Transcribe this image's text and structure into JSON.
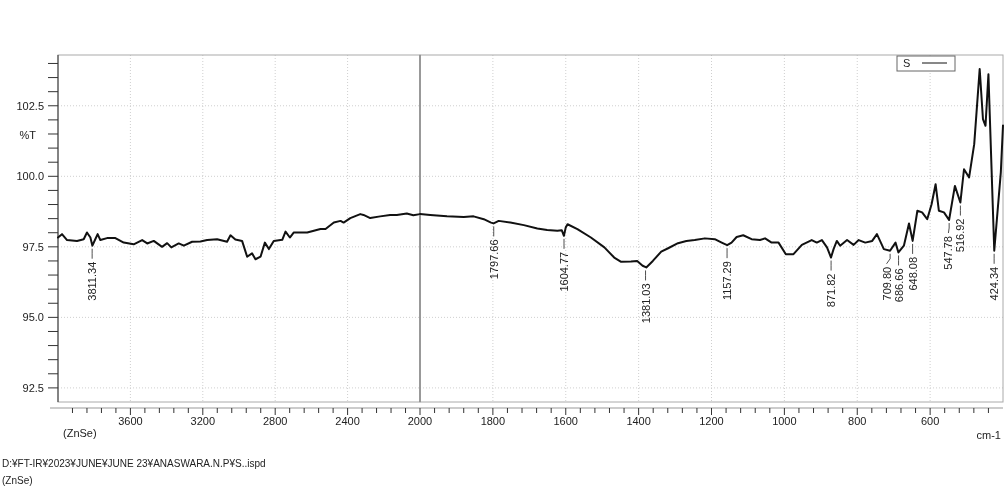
{
  "chart_data": [
    {
      "type": "line",
      "ylabel": "%T",
      "xlim": [
        4000,
        2000
      ],
      "ylim": [
        92,
        104.3
      ],
      "xticks": [
        3600,
        3200,
        2800,
        2400,
        {
          "value": 3920,
          "label": null
        },
        {
          "value": 3840,
          "label": null
        },
        {
          "value": 3760,
          "label": null
        },
        {
          "value": 3680,
          "label": null
        },
        {
          "value": 3520,
          "label": null
        },
        {
          "value": 3440,
          "label": null
        },
        {
          "value": 3360,
          "label": null
        },
        {
          "value": 3280,
          "label": null
        },
        {
          "value": 3120,
          "label": null
        },
        {
          "value": 3040,
          "label": null
        },
        {
          "value": 2960,
          "label": null
        },
        {
          "value": 2880,
          "label": null
        },
        {
          "value": 2720,
          "label": null
        },
        {
          "value": 2640,
          "label": null
        },
        {
          "value": 2560,
          "label": null
        },
        {
          "value": 2480,
          "label": null
        },
        {
          "value": 2320,
          "label": null
        },
        {
          "value": 2240,
          "label": null
        },
        {
          "value": 2160,
          "label": null
        },
        {
          "value": 2080,
          "label": null
        }
      ],
      "yticks": [
        92.5,
        {
          "value": 95,
          "label": "95.0"
        },
        97.5,
        {
          "value": 100,
          "label": "100.0"
        },
        102.5,
        {
          "value": 93,
          "label": null
        },
        {
          "value": 93.5,
          "label": null
        },
        {
          "value": 94,
          "label": null
        },
        {
          "value": 94.5,
          "label": null
        },
        {
          "value": 95.5,
          "label": null
        },
        {
          "value": 96,
          "label": null
        },
        {
          "value": 96.5,
          "label": null
        },
        {
          "value": 97,
          "label": null
        },
        {
          "value": 98,
          "label": null
        },
        {
          "value": 98.5,
          "label": null
        },
        {
          "value": 99,
          "label": null
        },
        {
          "value": 99.5,
          "label": null
        },
        {
          "value": 100.5,
          "label": null
        },
        {
          "value": 101,
          "label": null
        },
        {
          "value": 101.5,
          "label": null
        },
        {
          "value": 102,
          "label": null
        },
        {
          "value": 103,
          "label": null
        },
        {
          "value": 103.5,
          "label": null
        },
        {
          "value": 104,
          "label": null
        }
      ],
      "grid": true,
      "marker": "none",
      "line_style": "solid",
      "series": [
        {
          "color": "#111111",
          "x": [
            4000,
            3978,
            3950,
            3895,
            3858,
            3840,
            3821,
            3810,
            3794,
            3781,
            3766,
            3729,
            3683,
            3637,
            3582,
            3535,
            3507,
            3471,
            3425,
            3397,
            3374,
            3333,
            3305,
            3259,
            3213,
            3176,
            3121,
            3066,
            3047,
            3020,
            2983,
            2955,
            2928,
            2909,
            2881,
            2857,
            2835,
            2808,
            2761,
            2743,
            2719,
            2697,
            2623,
            2550,
            2522,
            2476,
            2439,
            2422,
            2385,
            2330,
            2312,
            2275,
            2220,
            2165,
            2128,
            2073,
            2037,
            2000
          ],
          "values": [
            97.83,
            97.95,
            97.74,
            97.71,
            97.77,
            98.01,
            97.83,
            97.54,
            97.77,
            97.95,
            97.74,
            97.81,
            97.81,
            97.65,
            97.59,
            97.74,
            97.62,
            97.71,
            97.5,
            97.63,
            97.48,
            97.62,
            97.54,
            97.68,
            97.69,
            97.74,
            97.77,
            97.68,
            97.91,
            97.76,
            97.71,
            97.15,
            97.27,
            97.06,
            97.15,
            97.65,
            97.42,
            97.71,
            97.75,
            98.04,
            97.83,
            98.01,
            98.01,
            98.13,
            98.13,
            98.36,
            98.42,
            98.36,
            98.52,
            98.66,
            98.63,
            98.52,
            98.58,
            98.63,
            98.63,
            98.68,
            98.62,
            98.66
          ]
        }
      ],
      "annotations": [
        {
          "text": "3811.34",
          "x": 3811.34,
          "y": 97.54
        },
        "(ZnSe)",
        "D:¥FT-IR¥2023¥JUNE¥JUNE 23¥ANASWARA.N.P¥S..ispd",
        "(ZnSe)"
      ]
    },
    {
      "type": "line",
      "xlabel": "cm-1",
      "xlim": [
        2000,
        400
      ],
      "ylim": [
        92,
        104.3
      ],
      "xticks": [
        2000,
        1800,
        1600,
        1400,
        1200,
        1000,
        800,
        600,
        {
          "value": 1960,
          "label": null
        },
        {
          "value": 1920,
          "label": null
        },
        {
          "value": 1880,
          "label": null
        },
        {
          "value": 1840,
          "label": null
        },
        {
          "value": 1760,
          "label": null
        },
        {
          "value": 1720,
          "label": null
        },
        {
          "value": 1680,
          "label": null
        },
        {
          "value": 1640,
          "label": null
        },
        {
          "value": 1560,
          "label": null
        },
        {
          "value": 1520,
          "label": null
        },
        {
          "value": 1480,
          "label": null
        },
        {
          "value": 1440,
          "label": null
        },
        {
          "value": 1360,
          "label": null
        },
        {
          "value": 1320,
          "label": null
        },
        {
          "value": 1280,
          "label": null
        },
        {
          "value": 1240,
          "label": null
        },
        {
          "value": 1160,
          "label": null
        },
        {
          "value": 1120,
          "label": null
        },
        {
          "value": 1080,
          "label": null
        },
        {
          "value": 1040,
          "label": null
        },
        {
          "value": 960,
          "label": null
        },
        {
          "value": 920,
          "label": null
        },
        {
          "value": 880,
          "label": null
        },
        {
          "value": 840,
          "label": null
        },
        {
          "value": 760,
          "label": null
        },
        {
          "value": 720,
          "label": null
        },
        {
          "value": 680,
          "label": null
        },
        {
          "value": 640,
          "label": null
        },
        {
          "value": 560,
          "label": null
        },
        {
          "value": 520,
          "label": null
        },
        {
          "value": 480,
          "label": null
        },
        {
          "value": 440,
          "label": null
        }
      ],
      "yticks": [
        92.5,
        95,
        97.5,
        100,
        102.5
      ],
      "tick_labels": "x",
      "grid": true,
      "legend": "top right",
      "marker": "none",
      "line_style": "solid",
      "series": [
        {
          "name": "S",
          "color": "#111111",
          "x": [
            2000,
            1972,
            1926,
            1880,
            1853,
            1825,
            1805,
            1798,
            1784,
            1752,
            1715,
            1678,
            1651,
            1623,
            1611,
            1605,
            1600,
            1595,
            1568,
            1531,
            1494,
            1467,
            1448,
            1421,
            1404,
            1389,
            1379,
            1361,
            1338,
            1319,
            1292,
            1269,
            1246,
            1218,
            1191,
            1172,
            1157,
            1145,
            1131,
            1113,
            1090,
            1067,
            1053,
            1035,
            1016,
            996,
            975,
            952,
            925,
            911,
            897,
            883,
            872,
            865,
            856,
            847,
            828,
            810,
            796,
            778,
            759,
            746,
            727,
            710,
            695,
            687,
            672,
            658,
            648,
            635,
            622,
            608,
            596,
            585,
            576,
            562,
            548,
            532,
            517,
            507,
            493,
            479,
            464,
            455,
            448,
            440,
            424,
            406,
            400
          ],
          "values": [
            98.66,
            98.63,
            98.58,
            98.56,
            98.58,
            98.48,
            98.36,
            98.33,
            98.42,
            98.36,
            98.27,
            98.15,
            98.1,
            98.07,
            98.09,
            97.89,
            98.19,
            98.3,
            98.13,
            97.83,
            97.48,
            97.12,
            96.97,
            96.98,
            97.0,
            96.83,
            96.77,
            97.0,
            97.33,
            97.45,
            97.63,
            97.71,
            97.74,
            97.8,
            97.77,
            97.65,
            97.56,
            97.65,
            97.85,
            97.91,
            97.77,
            97.74,
            97.8,
            97.65,
            97.65,
            97.24,
            97.24,
            97.57,
            97.74,
            97.65,
            97.74,
            97.48,
            97.12,
            97.42,
            97.71,
            97.54,
            97.74,
            97.57,
            97.74,
            97.65,
            97.71,
            97.95,
            97.42,
            97.36,
            97.65,
            97.3,
            97.54,
            98.33,
            97.71,
            98.78,
            98.72,
            98.48,
            99.01,
            99.72,
            98.78,
            98.72,
            98.45,
            99.66,
            99.07,
            100.25,
            99.96,
            101.14,
            103.8,
            102.03,
            101.79,
            103.62,
            97.36,
            100.14,
            101.8
          ]
        }
      ],
      "annotations": [
        {
          "text": "1797.66",
          "x": 1797.66,
          "y": 98.33
        },
        {
          "text": "1604.77",
          "x": 1604.77,
          "y": 97.89
        },
        {
          "text": "1381.03",
          "x": 1381.03,
          "y": 96.77
        },
        {
          "text": "1157.29",
          "x": 1157.29,
          "y": 97.56
        },
        {
          "text": "871.82",
          "x": 871.82,
          "y": 97.12
        },
        {
          "text": "709.80",
          "x": 709.8,
          "y": 97.36
        },
        {
          "text": "686.66",
          "x": 686.66,
          "y": 97.3
        },
        {
          "text": "648.08",
          "x": 648.08,
          "y": 97.71
        },
        {
          "text": "547.78",
          "x": 547.78,
          "y": 98.45
        },
        {
          "text": "516.92",
          "x": 516.92,
          "y": 99.07
        },
        {
          "text": "424.34",
          "x": 424.34,
          "y": 97.36
        }
      ]
    }
  ]
}
